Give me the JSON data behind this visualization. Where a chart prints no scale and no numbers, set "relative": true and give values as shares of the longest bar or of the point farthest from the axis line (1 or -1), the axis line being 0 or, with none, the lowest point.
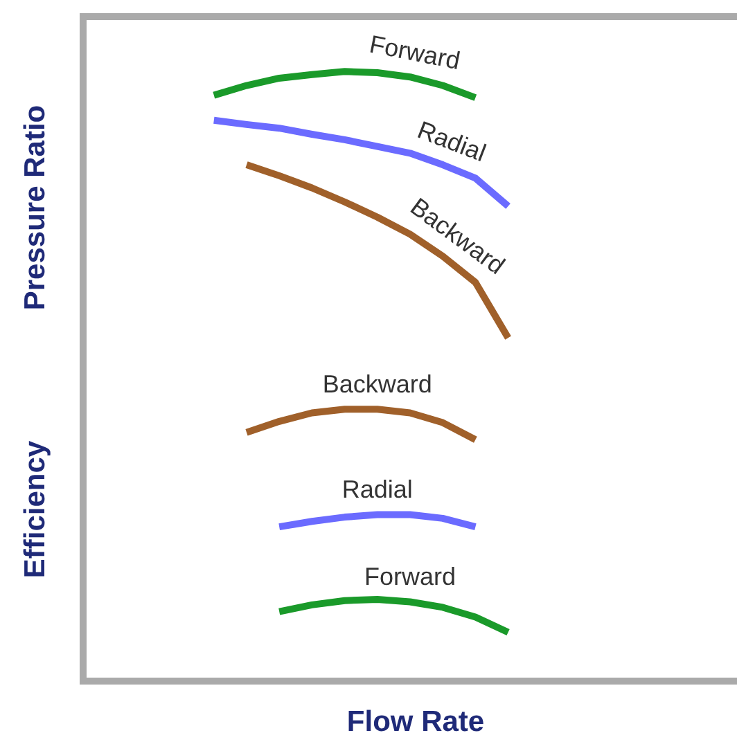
{
  "chart_data": {
    "type": "line",
    "relative": true,
    "xlabel": "Flow Rate",
    "ylabel": "Pressure Ratio",
    "annotations": [
      "Efficiency"
    ],
    "legend": false,
    "marker": "none",
    "line_style": "solid",
    "categories": [
      null,
      null,
      null,
      null,
      null,
      null,
      null,
      null,
      null,
      null,
      null,
      null,
      null,
      null,
      null,
      null,
      null,
      null,
      null,
      null,
      null
    ],
    "series": [
      {
        "name": "Forward",
        "color": "#1a9a2a",
        "values": [
          null,
          null,
          null,
          null,
          0.961,
          0.977,
          0.989,
          0.995,
          1,
          0.998,
          0.991,
          0.977,
          0.957,
          null,
          null,
          null,
          null,
          null,
          null,
          null,
          null
        ]
      },
      {
        "name": "Radial",
        "color": "#6b6bff",
        "values": [
          null,
          null,
          null,
          null,
          0.92,
          0.913,
          0.907,
          0.897,
          0.888,
          0.877,
          0.866,
          0.847,
          0.825,
          0.779,
          null,
          null,
          null,
          null,
          null,
          null,
          null
        ]
      },
      {
        "name": "Backward",
        "color": "#a0602a",
        "values": [
          null,
          null,
          null,
          null,
          null,
          0.847,
          0.829,
          0.809,
          0.786,
          0.761,
          0.733,
          0.697,
          0.654,
          0.563,
          null,
          null,
          null,
          null,
          null,
          null,
          null
        ]
      },
      {
        "name": "Backward",
        "color": "#a0602a",
        "values": [
          null,
          null,
          null,
          null,
          null,
          0.408,
          0.426,
          0.44,
          0.446,
          0.446,
          0.44,
          0.424,
          0.396,
          null,
          null,
          null,
          null,
          null,
          null,
          null,
          null
        ]
      },
      {
        "name": "Radial",
        "color": "#6b6bff",
        "values": [
          null,
          null,
          null,
          null,
          null,
          null,
          0.253,
          0.262,
          0.269,
          0.273,
          0.273,
          0.267,
          0.253,
          null,
          null,
          null,
          null,
          null,
          null,
          null,
          null
        ]
      },
      {
        "name": "Forward",
        "color": "#1a9a2a",
        "values": [
          null,
          null,
          null,
          null,
          null,
          null,
          0.114,
          0.125,
          0.132,
          0.134,
          0.13,
          0.121,
          0.105,
          0.08,
          null,
          null,
          null,
          null,
          null,
          null,
          null
        ]
      }
    ]
  }
}
